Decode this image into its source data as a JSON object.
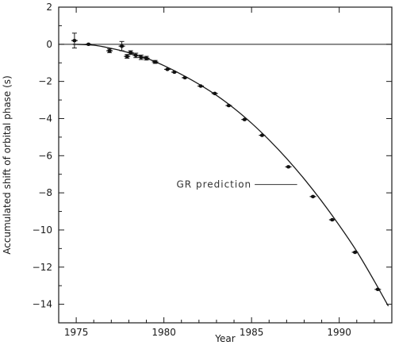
{
  "chart_data": {
    "type": "scatter",
    "title": "",
    "xlabel": "Year",
    "ylabel": "Accumulated shift of orbital phase (s)",
    "xlim": [
      1974.0,
      1993.0
    ],
    "ylim": [
      -15,
      2
    ],
    "xticks": [
      1975,
      1980,
      1985,
      1990
    ],
    "yticks": [
      2,
      0,
      -2,
      -4,
      -6,
      -8,
      -10,
      -12,
      -14
    ],
    "grid": false,
    "legend": "none",
    "series": [
      {
        "kind": "points-with-error-bars",
        "points": [
          {
            "x": 1974.9,
            "y": 0.2,
            "err": 0.4
          },
          {
            "x": 1975.7,
            "y": 0.0,
            "err": 0.05
          },
          {
            "x": 1976.9,
            "y": -0.35,
            "err": 0.1
          },
          {
            "x": 1977.6,
            "y": -0.1,
            "err": 0.25
          },
          {
            "x": 1977.9,
            "y": -0.65,
            "err": 0.1
          },
          {
            "x": 1978.1,
            "y": -0.45,
            "err": 0.1
          },
          {
            "x": 1978.4,
            "y": -0.6,
            "err": 0.12
          },
          {
            "x": 1978.7,
            "y": -0.7,
            "err": 0.12
          },
          {
            "x": 1979.0,
            "y": -0.75,
            "err": 0.1
          },
          {
            "x": 1979.5,
            "y": -0.95,
            "err": 0.08
          },
          {
            "x": 1980.2,
            "y": -1.35,
            "err": 0.06
          },
          {
            "x": 1980.6,
            "y": -1.5,
            "err": 0.06
          },
          {
            "x": 1981.2,
            "y": -1.8,
            "err": 0.06
          },
          {
            "x": 1982.1,
            "y": -2.25,
            "err": 0.06
          },
          {
            "x": 1982.9,
            "y": -2.65,
            "err": 0.06
          },
          {
            "x": 1983.7,
            "y": -3.3,
            "err": 0.06
          },
          {
            "x": 1984.6,
            "y": -4.05,
            "err": 0.06
          },
          {
            "x": 1985.6,
            "y": -4.9,
            "err": 0.06
          },
          {
            "x": 1987.1,
            "y": -6.6,
            "err": 0.06
          },
          {
            "x": 1988.5,
            "y": -8.2,
            "err": 0.06
          },
          {
            "x": 1989.6,
            "y": -9.45,
            "err": 0.06
          },
          {
            "x": 1990.9,
            "y": -11.2,
            "err": 0.06
          },
          {
            "x": 1992.2,
            "y": -13.2,
            "err": 0.06
          }
        ]
      },
      {
        "kind": "curve",
        "x": [
          1974.8,
          1976,
          1977,
          1978,
          1979,
          1980,
          1981,
          1982,
          1983,
          1984,
          1985,
          1986,
          1987,
          1988,
          1989,
          1990,
          1991,
          1992,
          1992.8
        ],
        "y": [
          0.0,
          -0.05,
          -0.22,
          -0.45,
          -0.75,
          -1.15,
          -1.62,
          -2.15,
          -2.75,
          -3.45,
          -4.25,
          -5.15,
          -6.15,
          -7.25,
          -8.45,
          -9.75,
          -11.15,
          -12.75,
          -14.1
        ]
      }
    ],
    "annotations": [
      {
        "text": "GR prediction",
        "x": 1985.0,
        "y": -7.55,
        "points_to": {
          "x": 1987.6,
          "y": -7.55
        }
      }
    ]
  }
}
